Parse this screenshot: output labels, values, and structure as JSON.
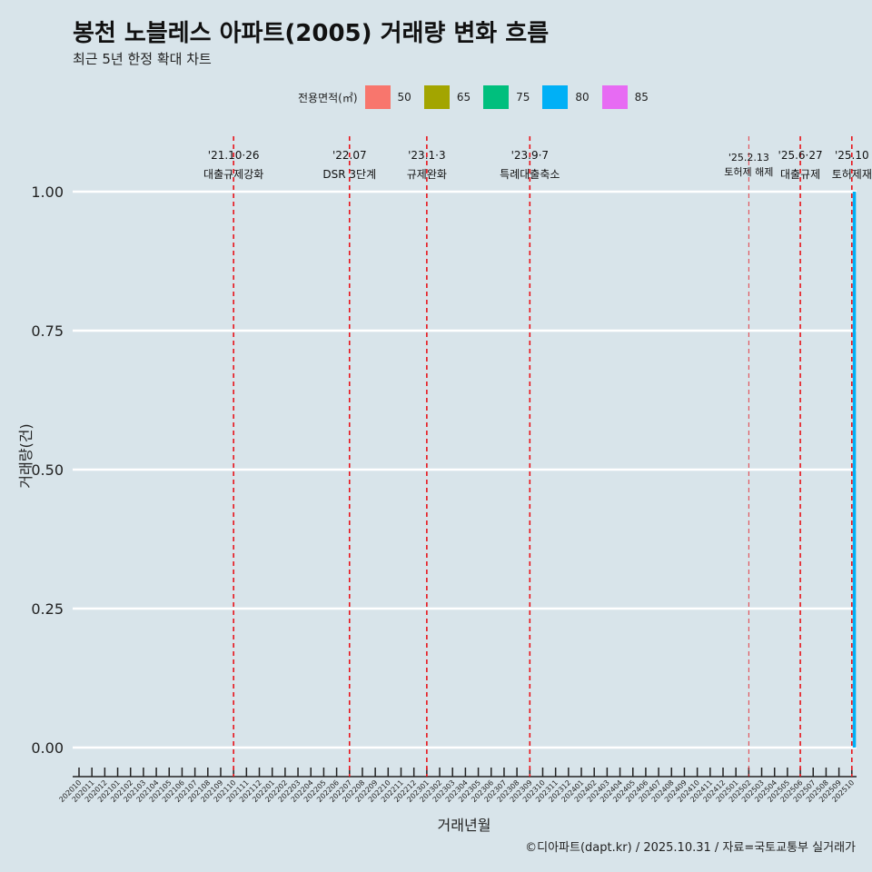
{
  "title": "봉천 노블레스 아파트(2005) 거래량 변화 흐름",
  "subtitle": "최근 5년 한정 확대 차트",
  "caption": "©디아파트(dapt.kr) / 2025.10.31 / 자료=국토교통부 실거래가",
  "chart_data": {
    "type": "bar",
    "xlabel": "거래년월",
    "ylabel": "거래량(건)",
    "ylim": [
      0,
      1
    ],
    "yticks": [
      "0.00",
      "0.25",
      "0.50",
      "0.75",
      "1.00"
    ],
    "categories": [
      "202010",
      "202011",
      "202012",
      "202101",
      "202102",
      "202103",
      "202104",
      "202105",
      "202106",
      "202107",
      "202108",
      "202109",
      "202110",
      "202111",
      "202112",
      "202201",
      "202202",
      "202203",
      "202204",
      "202205",
      "202206",
      "202207",
      "202208",
      "202209",
      "202210",
      "202211",
      "202212",
      "202301",
      "202302",
      "202303",
      "202304",
      "202305",
      "202306",
      "202307",
      "202308",
      "202309",
      "202310",
      "202311",
      "202312",
      "202401",
      "202402",
      "202403",
      "202404",
      "202405",
      "202406",
      "202407",
      "202408",
      "202409",
      "202410",
      "202411",
      "202412",
      "202501",
      "202502",
      "202503",
      "202504",
      "202505",
      "202506",
      "202507",
      "202508",
      "202509",
      "202510"
    ],
    "legend": {
      "title": "전용면적(㎡)",
      "placement": "top",
      "items": [
        {
          "label": "50",
          "color": "#f8766d"
        },
        {
          "label": "65",
          "color": "#a3a500"
        },
        {
          "label": "75",
          "color": "#00bf7d"
        },
        {
          "label": "80",
          "color": "#00b0f6"
        },
        {
          "label": "85",
          "color": "#e76bf3"
        }
      ]
    },
    "series": [
      {
        "name": "80",
        "color": "#00b0f6",
        "points": [
          {
            "x": "202510",
            "y": 1
          }
        ]
      }
    ],
    "annotations": [
      {
        "x": "202110",
        "date": "'21.10·26",
        "label": "대출규제강화"
      },
      {
        "x": "202207",
        "date": "'22.07",
        "label": "DSR 3단계"
      },
      {
        "x": "202301",
        "date": "'23.1·3",
        "label": "규제완화"
      },
      {
        "x": "202309",
        "date": "'23.9·7",
        "label": "특례대출축소"
      },
      {
        "x": "202502",
        "date": "'25.2.13",
        "label": "토허제 해제",
        "small": true
      },
      {
        "x": "202506",
        "date": "'25.6·27",
        "label": "대출규제"
      },
      {
        "x": "202510",
        "date": "'25.10",
        "label": "토허제재"
      }
    ]
  }
}
